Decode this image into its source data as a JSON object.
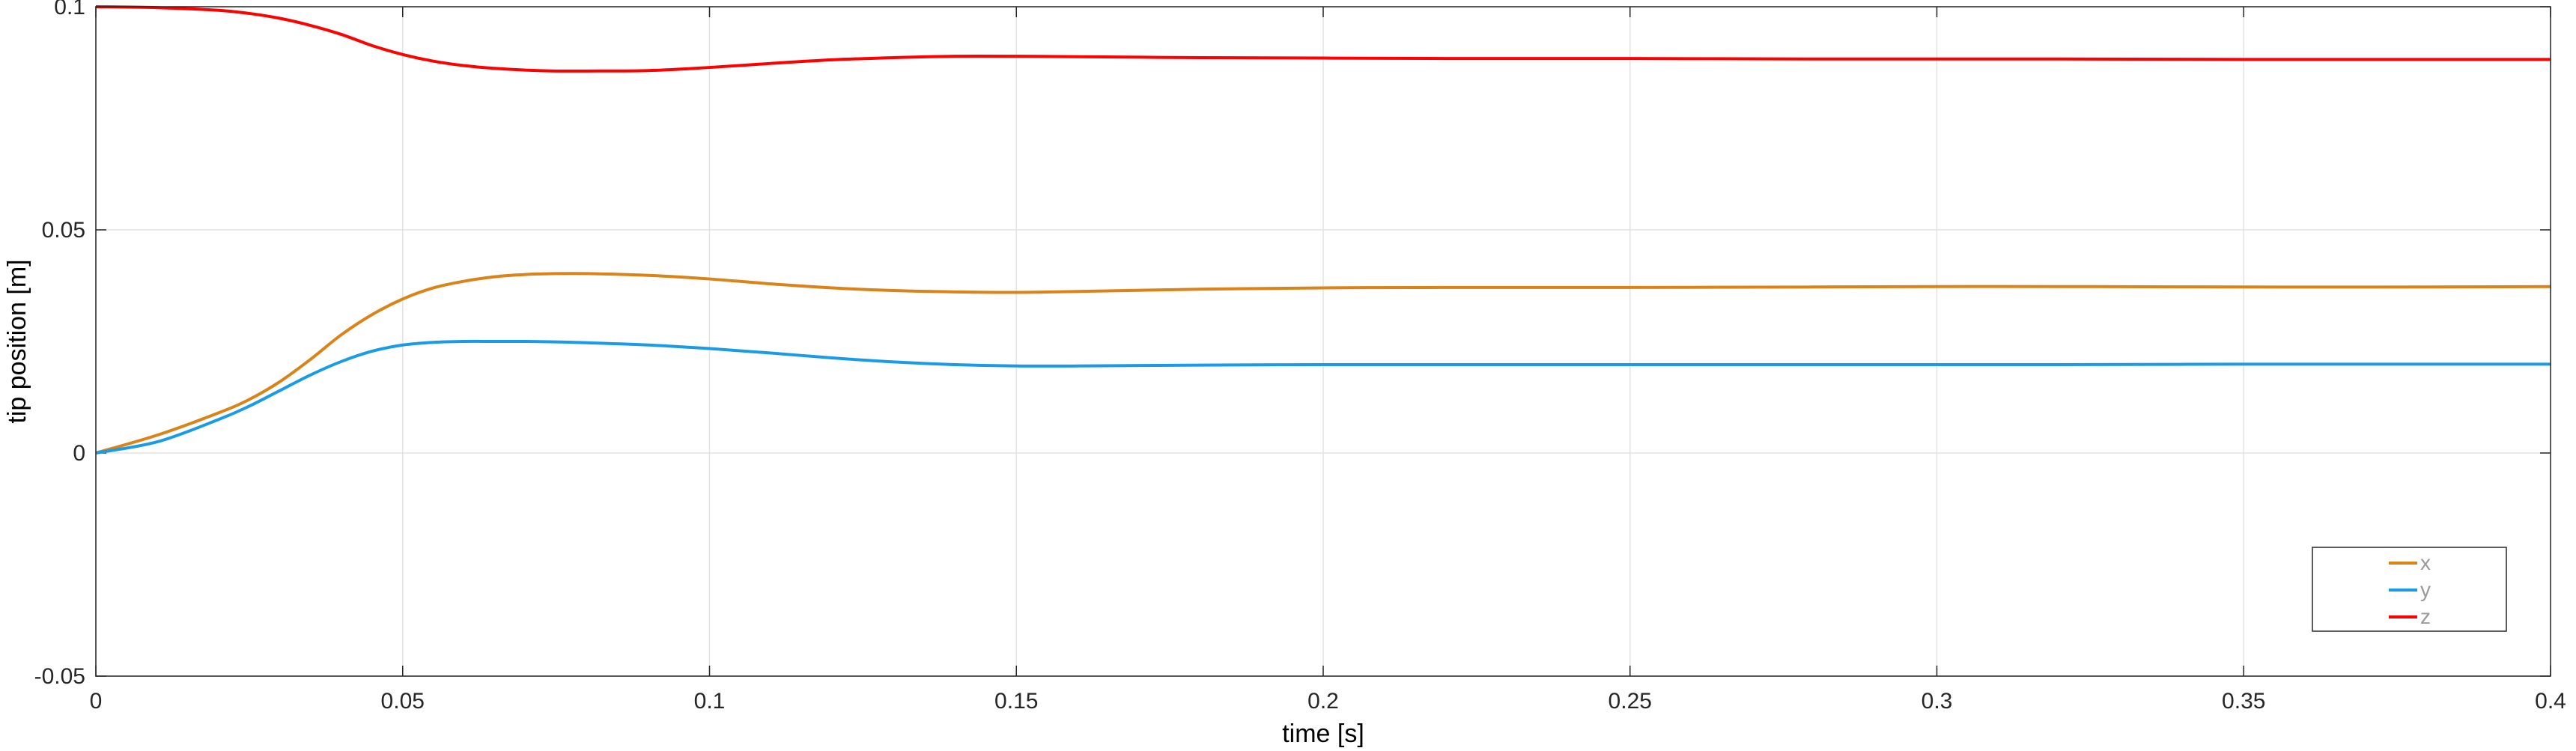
{
  "chart_data": {
    "type": "line",
    "title": "",
    "xlabel": "time [s]",
    "ylabel": "tip position [m]",
    "xlim": [
      0,
      0.4
    ],
    "ylim": [
      -0.05,
      0.1
    ],
    "x_ticks": [
      "0",
      "0.05",
      "0.1",
      "0.15",
      "0.2",
      "0.25",
      "0.3",
      "0.35",
      "0.4"
    ],
    "y_ticks": [
      "-0.05",
      "0",
      "0.05",
      "0.1"
    ],
    "grid": true,
    "legend_position": "bottom-right",
    "x": [
      0,
      0.01,
      0.02,
      0.025,
      0.03,
      0.035,
      0.04,
      0.045,
      0.05,
      0.055,
      0.06,
      0.065,
      0.07,
      0.075,
      0.08,
      0.09,
      0.1,
      0.11,
      0.12,
      0.13,
      0.14,
      0.15,
      0.16,
      0.18,
      0.2,
      0.22,
      0.25,
      0.28,
      0.3,
      0.32,
      0.35,
      0.38,
      0.4
    ],
    "series": [
      {
        "name": "x",
        "color": "#d98319",
        "values": [
          0,
          0.004,
          0.009,
          0.012,
          0.016,
          0.021,
          0.0265,
          0.031,
          0.0345,
          0.037,
          0.0385,
          0.0395,
          0.04,
          0.0402,
          0.0402,
          0.0398,
          0.039,
          0.0379,
          0.037,
          0.0364,
          0.0361,
          0.036,
          0.0362,
          0.0367,
          0.037,
          0.0371,
          0.0371,
          0.0372,
          0.0373,
          0.0373,
          0.0372,
          0.0372,
          0.0373
        ]
      },
      {
        "name": "y",
        "color": "#1a9be6",
        "values": [
          0,
          0.0025,
          0.0075,
          0.0105,
          0.014,
          0.0175,
          0.0205,
          0.0228,
          0.0242,
          0.0248,
          0.025,
          0.025,
          0.025,
          0.0249,
          0.0247,
          0.0242,
          0.0234,
          0.0224,
          0.0213,
          0.0204,
          0.0198,
          0.0195,
          0.0195,
          0.0197,
          0.0198,
          0.0198,
          0.0198,
          0.0198,
          0.0198,
          0.0198,
          0.0199,
          0.0199,
          0.0199
        ]
      },
      {
        "name": "z",
        "color": "#ff0000",
        "values": [
          0.1,
          0.0998,
          0.0992,
          0.0985,
          0.0974,
          0.0958,
          0.0938,
          0.0913,
          0.0893,
          0.0878,
          0.0868,
          0.0862,
          0.0858,
          0.0856,
          0.0856,
          0.0857,
          0.0864,
          0.0873,
          0.0881,
          0.0886,
          0.0889,
          0.0889,
          0.0888,
          0.0886,
          0.0885,
          0.0884,
          0.0884,
          0.0883,
          0.0883,
          0.0883,
          0.0882,
          0.0882,
          0.0882
        ]
      }
    ]
  }
}
